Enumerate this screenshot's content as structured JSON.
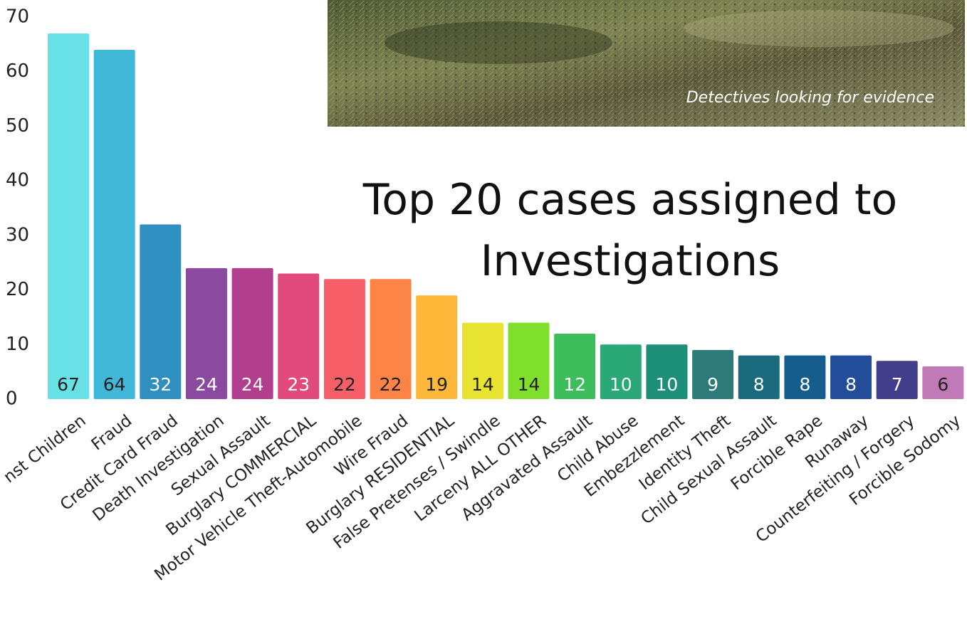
{
  "chart_data": {
    "type": "bar",
    "title": "Top 20 cases assigned to Investigations",
    "categories": [
      "nst Children",
      "Fraud",
      "Credit Card Fraud",
      "Death Investigation",
      "Sexual Assault",
      "Burglary COMMERCIAL",
      "Motor Vehicle Theft-Automobile",
      "Wire Fraud",
      "Burglary RESIDENTIAL",
      "False Pretenses / Swindle",
      "Larceny ALL OTHER",
      "Aggravated Assault",
      "Child Abuse",
      "Embezzlement",
      "Identity Theft",
      "Child Sexual Assault",
      "Forcible Rape",
      "Runaway",
      "Counterfeiting / Forgery",
      "Forcible Sodomy"
    ],
    "values": [
      67,
      64,
      32,
      24,
      24,
      23,
      22,
      22,
      19,
      14,
      14,
      12,
      10,
      10,
      9,
      8,
      8,
      8,
      7,
      6
    ],
    "colors": [
      "#67e0e6",
      "#42b8d8",
      "#2e8fc0",
      "#8b4aa0",
      "#b23f8e",
      "#e24a7e",
      "#f75f68",
      "#fc8446",
      "#fdb83a",
      "#e8e230",
      "#7fdf2c",
      "#3dbd5c",
      "#2aa877",
      "#1d8f78",
      "#2e7a78",
      "#1c6a7e",
      "#145d8c",
      "#234d9a",
      "#433e8c",
      "#c07ab8"
    ],
    "ylim": [
      0,
      70
    ],
    "yticks": [
      0,
      10,
      20,
      30,
      40,
      50,
      60,
      70
    ],
    "grid": false
  },
  "photo": {
    "caption": "Detectives looking for evidence"
  }
}
